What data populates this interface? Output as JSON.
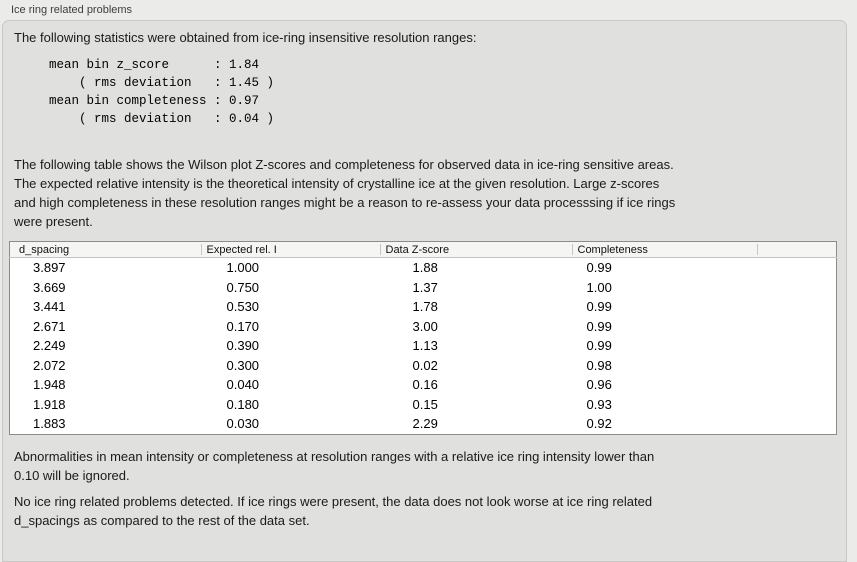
{
  "group_label": "Ice ring related problems",
  "intro_text": "The following statistics were obtained from ice-ring insensitive resolution ranges:",
  "stats_block": "mean bin z_score      : 1.84\n    ( rms deviation   : 1.45 )\nmean bin completeness : 0.97\n    ( rms deviation   : 0.04 )",
  "table_description": "The following table shows the Wilson plot Z-scores and completeness for observed data in ice-ring sensitive areas.\nThe expected relative intensity is the theoretical intensity of crystalline ice at the given resolution. Large z-scores\nand high completeness in these resolution ranges might be a reason to re-assess your data processsing if ice rings\nwere present.",
  "table": {
    "columns": [
      "d_spacing",
      "Expected rel. I",
      "Data Z-score",
      "Completeness"
    ],
    "rows": [
      [
        "3.897",
        "1.000",
        "1.88",
        "0.99"
      ],
      [
        "3.669",
        "0.750",
        "1.37",
        "1.00"
      ],
      [
        "3.441",
        "0.530",
        "1.78",
        "0.99"
      ],
      [
        "2.671",
        "0.170",
        "3.00",
        "0.99"
      ],
      [
        "2.249",
        "0.390",
        "1.13",
        "0.99"
      ],
      [
        "2.072",
        "0.300",
        "0.02",
        "0.98"
      ],
      [
        "1.948",
        "0.040",
        "0.16",
        "0.96"
      ],
      [
        "1.918",
        "0.180",
        "0.15",
        "0.93"
      ],
      [
        "1.883",
        "0.030",
        "2.29",
        "0.92"
      ]
    ]
  },
  "note_abnormalities": "Abnormalities in mean intensity or completeness at resolution ranges with a relative ice ring intensity lower than\n0.10 will be ignored.",
  "conclusion": "No ice ring related problems detected. If ice rings were present, the data does not look worse at ice ring related\nd_spacings as compared to the rest of the data set.",
  "colors": {
    "page_bg": "#ebebea",
    "panel_bg": "#e0e0df",
    "table_bg": "#ffffff",
    "table_border": "#8c8c8c"
  }
}
